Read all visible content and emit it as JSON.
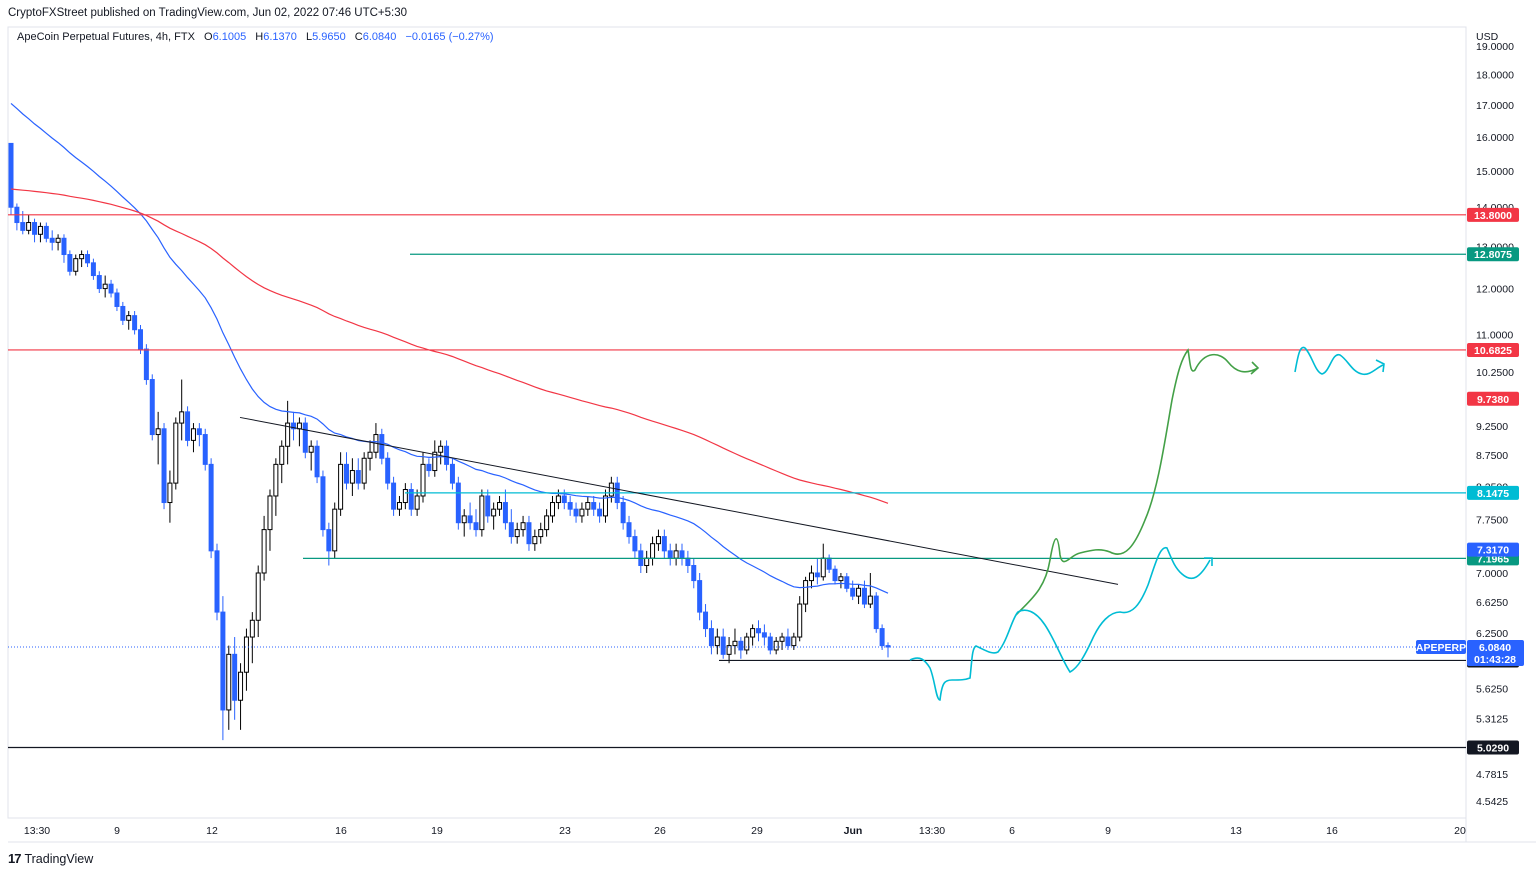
{
  "publisher_line": "CryptoFXStreet published on TradingView.com, Jun 02, 2022 07:46 UTC+5:30",
  "legend": {
    "symbol": "ApeCoin Perpetual Futures, 4h, FTX",
    "open_label": "O",
    "open": "6.1005",
    "high_label": "H",
    "high": "6.1370",
    "low_label": "L",
    "low": "5.9650",
    "close_label": "C",
    "close": "6.0840",
    "change": "−0.0165 (−0.27%)"
  },
  "currency": "USD",
  "brand": {
    "logo": "17",
    "name": "TradingView"
  },
  "colors": {
    "up": "#000000",
    "down": "#2962ff",
    "ema_blue": "#2962ff",
    "ema_red": "#f23645",
    "red_level": "#f23645",
    "green_level": "#089981",
    "cyan_level": "#00bcd4",
    "black_level": "#131722",
    "drawing_green": "#43a047",
    "drawing_cyan": "#00bcd4"
  },
  "chart_data": {
    "type": "candlestick",
    "y_scale": "log",
    "ylim": [
      4.4,
      19.7
    ],
    "y_ticks": [
      "19.0000",
      "18.0000",
      "17.0000",
      "16.0000",
      "15.0000",
      "14.0000",
      "13.0000",
      "12.0000",
      "11.0000",
      "10.2500",
      "9.2500",
      "8.7500",
      "8.2500",
      "7.7500",
      "7.0000",
      "6.6250",
      "6.2500",
      "5.6250",
      "5.3125",
      "4.7815",
      "4.5425"
    ],
    "x_ticks": [
      "13:30",
      "9",
      "12",
      "16",
      "19",
      "23",
      "26",
      "29",
      "Jun",
      "13:30",
      "6",
      "9",
      "13",
      "16",
      "20"
    ],
    "candles": [
      [
        15.8,
        15.8,
        13.8,
        14.0
      ],
      [
        14.0,
        14.1,
        13.4,
        13.6
      ],
      [
        13.6,
        13.9,
        13.3,
        13.4
      ],
      [
        13.4,
        13.8,
        13.3,
        13.6
      ],
      [
        13.6,
        13.7,
        13.1,
        13.3
      ],
      [
        13.3,
        13.6,
        13.1,
        13.5
      ],
      [
        13.5,
        13.6,
        13.1,
        13.2
      ],
      [
        13.2,
        13.4,
        12.9,
        13.1
      ],
      [
        13.1,
        13.3,
        12.9,
        13.2
      ],
      [
        13.2,
        13.3,
        12.6,
        12.8
      ],
      [
        12.8,
        12.9,
        12.3,
        12.4
      ],
      [
        12.4,
        12.8,
        12.3,
        12.7
      ],
      [
        12.7,
        12.9,
        12.5,
        12.8
      ],
      [
        12.8,
        12.9,
        12.5,
        12.6
      ],
      [
        12.6,
        12.7,
        12.2,
        12.3
      ],
      [
        12.3,
        12.4,
        11.9,
        12.0
      ],
      [
        12.0,
        12.3,
        11.8,
        12.1
      ],
      [
        12.1,
        12.2,
        11.8,
        11.9
      ],
      [
        11.9,
        12.0,
        11.5,
        11.6
      ],
      [
        11.6,
        11.7,
        11.2,
        11.3
      ],
      [
        11.3,
        11.5,
        11.1,
        11.4
      ],
      [
        11.4,
        11.5,
        11.0,
        11.1
      ],
      [
        11.1,
        11.2,
        10.6,
        10.7
      ],
      [
        10.7,
        10.8,
        10.0,
        10.1
      ],
      [
        10.1,
        10.2,
        9.0,
        9.1
      ],
      [
        9.1,
        9.5,
        8.6,
        9.2
      ],
      [
        9.2,
        9.3,
        7.9,
        8.0
      ],
      [
        8.0,
        8.5,
        7.7,
        8.3
      ],
      [
        8.3,
        9.4,
        8.2,
        9.3
      ],
      [
        9.3,
        10.1,
        9.0,
        9.5
      ],
      [
        9.5,
        9.6,
        8.9,
        9.0
      ],
      [
        9.0,
        9.3,
        8.8,
        9.2
      ],
      [
        9.2,
        9.3,
        8.9,
        9.1
      ],
      [
        9.1,
        9.2,
        8.5,
        8.6
      ],
      [
        8.6,
        8.7,
        7.2,
        7.3
      ],
      [
        7.3,
        7.4,
        6.4,
        6.5
      ],
      [
        6.5,
        6.7,
        5.1,
        5.4
      ],
      [
        5.4,
        6.1,
        5.2,
        6.0
      ],
      [
        6.0,
        6.2,
        5.3,
        5.5
      ],
      [
        5.5,
        5.9,
        5.2,
        5.8
      ],
      [
        5.8,
        6.3,
        5.6,
        6.2
      ],
      [
        6.2,
        6.5,
        5.9,
        6.4
      ],
      [
        6.4,
        7.1,
        6.2,
        7.0
      ],
      [
        7.0,
        7.8,
        6.9,
        7.6
      ],
      [
        7.6,
        8.2,
        7.3,
        8.1
      ],
      [
        8.1,
        8.7,
        7.8,
        8.6
      ],
      [
        8.6,
        9.0,
        8.3,
        8.9
      ],
      [
        8.9,
        9.7,
        8.6,
        9.3
      ],
      [
        9.3,
        9.5,
        9.0,
        9.2
      ],
      [
        9.2,
        9.4,
        8.9,
        9.3
      ],
      [
        9.3,
        9.4,
        8.7,
        8.8
      ],
      [
        8.8,
        9.0,
        8.5,
        8.9
      ],
      [
        8.9,
        9.0,
        8.3,
        8.4
      ],
      [
        8.4,
        8.5,
        7.5,
        7.6
      ],
      [
        7.6,
        7.7,
        7.1,
        7.3
      ],
      [
        7.3,
        8.0,
        7.2,
        7.9
      ],
      [
        7.9,
        8.8,
        7.8,
        8.6
      ],
      [
        8.6,
        8.8,
        8.2,
        8.3
      ],
      [
        8.3,
        8.7,
        8.1,
        8.5
      ],
      [
        8.5,
        8.7,
        8.2,
        8.3
      ],
      [
        8.3,
        8.8,
        8.2,
        8.7
      ],
      [
        8.7,
        9.0,
        8.5,
        8.8
      ],
      [
        8.8,
        9.3,
        8.7,
        9.1
      ],
      [
        9.1,
        9.2,
        8.6,
        8.7
      ],
      [
        8.7,
        8.8,
        8.2,
        8.3
      ],
      [
        8.3,
        8.4,
        7.8,
        7.9
      ],
      [
        7.9,
        8.1,
        7.8,
        8.0
      ],
      [
        8.0,
        8.3,
        7.9,
        8.2
      ],
      [
        8.2,
        8.3,
        7.8,
        7.9
      ],
      [
        7.9,
        8.2,
        7.8,
        8.1
      ],
      [
        8.1,
        8.8,
        8.0,
        8.6
      ],
      [
        8.6,
        8.7,
        8.4,
        8.5
      ],
      [
        8.5,
        9.0,
        8.4,
        8.8
      ],
      [
        8.8,
        9.0,
        8.6,
        8.9
      ],
      [
        8.9,
        9.0,
        8.5,
        8.6
      ],
      [
        8.6,
        8.7,
        8.2,
        8.3
      ],
      [
        8.3,
        8.4,
        7.6,
        7.7
      ],
      [
        7.7,
        7.9,
        7.5,
        7.8
      ],
      [
        7.8,
        8.0,
        7.6,
        7.7
      ],
      [
        7.7,
        7.9,
        7.5,
        7.6
      ],
      [
        7.6,
        8.2,
        7.5,
        8.1
      ],
      [
        8.1,
        8.2,
        7.7,
        7.8
      ],
      [
        7.8,
        8.0,
        7.6,
        7.9
      ],
      [
        7.9,
        8.1,
        7.8,
        8.0
      ],
      [
        8.0,
        8.2,
        7.6,
        7.7
      ],
      [
        7.7,
        7.9,
        7.4,
        7.5
      ],
      [
        7.5,
        7.7,
        7.4,
        7.6
      ],
      [
        7.6,
        7.8,
        7.5,
        7.7
      ],
      [
        7.7,
        7.8,
        7.3,
        7.4
      ],
      [
        7.4,
        7.6,
        7.3,
        7.5
      ],
      [
        7.5,
        7.7,
        7.4,
        7.6
      ],
      [
        7.6,
        7.9,
        7.5,
        7.8
      ],
      [
        7.8,
        8.1,
        7.7,
        8.0
      ],
      [
        8.0,
        8.2,
        7.9,
        8.1
      ],
      [
        8.1,
        8.2,
        7.9,
        8.0
      ],
      [
        8.0,
        8.1,
        7.8,
        7.9
      ],
      [
        7.9,
        8.0,
        7.7,
        7.8
      ],
      [
        7.8,
        8.0,
        7.7,
        7.9
      ],
      [
        7.9,
        8.1,
        7.8,
        8.0
      ],
      [
        8.0,
        8.1,
        7.8,
        7.9
      ],
      [
        7.9,
        8.0,
        7.7,
        7.8
      ],
      [
        7.8,
        8.2,
        7.7,
        8.1
      ],
      [
        8.1,
        8.4,
        8.0,
        8.3
      ],
      [
        8.3,
        8.4,
        7.9,
        8.0
      ],
      [
        8.0,
        8.1,
        7.6,
        7.7
      ],
      [
        7.7,
        7.8,
        7.4,
        7.5
      ],
      [
        7.5,
        7.6,
        7.2,
        7.3
      ],
      [
        7.3,
        7.4,
        7.0,
        7.1
      ],
      [
        7.1,
        7.3,
        7.0,
        7.2
      ],
      [
        7.2,
        7.5,
        7.1,
        7.4
      ],
      [
        7.4,
        7.6,
        7.3,
        7.5
      ],
      [
        7.5,
        7.6,
        7.2,
        7.3
      ],
      [
        7.3,
        7.4,
        7.1,
        7.2
      ],
      [
        7.2,
        7.4,
        7.1,
        7.3
      ],
      [
        7.3,
        7.4,
        7.1,
        7.2
      ],
      [
        7.2,
        7.3,
        7.0,
        7.1
      ],
      [
        7.1,
        7.2,
        6.8,
        6.9
      ],
      [
        6.9,
        7.0,
        6.4,
        6.5
      ],
      [
        6.5,
        6.6,
        6.2,
        6.3
      ],
      [
        6.3,
        6.4,
        6.0,
        6.1
      ],
      [
        6.1,
        6.3,
        6.0,
        6.2
      ],
      [
        6.2,
        6.3,
        5.95,
        6.0
      ],
      [
        6.0,
        6.2,
        5.9,
        6.1
      ],
      [
        6.1,
        6.3,
        6.0,
        6.15
      ],
      [
        6.15,
        6.2,
        5.95,
        6.05
      ],
      [
        6.05,
        6.25,
        6.0,
        6.2
      ],
      [
        6.2,
        6.35,
        6.1,
        6.3
      ],
      [
        6.3,
        6.4,
        6.15,
        6.25
      ],
      [
        6.25,
        6.35,
        6.1,
        6.2
      ],
      [
        6.2,
        6.25,
        6.0,
        6.05
      ],
      [
        6.05,
        6.2,
        6.0,
        6.15
      ],
      [
        6.15,
        6.25,
        6.05,
        6.2
      ],
      [
        6.2,
        6.3,
        6.05,
        6.1
      ],
      [
        6.1,
        6.25,
        6.05,
        6.2
      ],
      [
        6.2,
        6.7,
        6.15,
        6.6
      ],
      [
        6.6,
        6.95,
        6.5,
        6.9
      ],
      [
        6.9,
        7.1,
        6.8,
        7.0
      ],
      [
        7.0,
        7.2,
        6.85,
        6.95
      ],
      [
        6.95,
        7.4,
        6.9,
        7.2
      ],
      [
        7.2,
        7.25,
        7.0,
        7.05
      ],
      [
        7.05,
        7.1,
        6.85,
        6.9
      ],
      [
        6.9,
        7.0,
        6.8,
        6.95
      ],
      [
        6.95,
        7.0,
        6.75,
        6.8
      ],
      [
        6.8,
        6.9,
        6.65,
        6.7
      ],
      [
        6.7,
        6.85,
        6.6,
        6.8
      ],
      [
        6.8,
        6.9,
        6.55,
        6.6
      ],
      [
        6.6,
        7.0,
        6.55,
        6.7
      ],
      [
        6.7,
        6.75,
        6.25,
        6.3
      ],
      [
        6.3,
        6.35,
        6.05,
        6.1
      ],
      [
        6.1,
        6.137,
        5.965,
        6.084
      ]
    ],
    "overlays": [
      {
        "name": "",
        "color": "#2962ff",
        "type": "ema"
      },
      {
        "name": "",
        "color": "#f23645",
        "type": "ema"
      }
    ],
    "levels": [
      {
        "price_label": "13.8000",
        "price": 13.8,
        "color": "#f23645",
        "span": "full",
        "label_bg": "#f23645"
      },
      {
        "price_label": "12.8075",
        "price": 12.8075,
        "color": "#089981",
        "span": "partial",
        "label_bg": "#089981"
      },
      {
        "price_label": "10.6825",
        "price": 10.6825,
        "color": "#f23645",
        "span": "full",
        "label_bg": "#f23645"
      },
      {
        "price_label": "8.1475",
        "price": 8.1475,
        "color": "#00bcd4",
        "span": "partial",
        "label_bg": "#00bcd4"
      },
      {
        "price_label": "7.1965",
        "price": 7.1965,
        "color": "#089981",
        "span": "partial",
        "label_bg": "#089981"
      },
      {
        "price_label": "5.9310",
        "price": 5.931,
        "color": "#131722",
        "span": "partial",
        "label_bg": "#131722"
      },
      {
        "price_label": "5.0290",
        "price": 5.029,
        "color": "#131722",
        "span": "full",
        "label_bg": "#131722"
      }
    ],
    "axis_labels": [
      {
        "price_label": "9.7380",
        "price": 9.738,
        "label_bg": "#f23645"
      },
      {
        "price_label": "7.3170",
        "price": 7.317,
        "label_bg": "#2962ff"
      }
    ],
    "last_price": {
      "symbol": "APEPERP",
      "price_label": "6.0840",
      "price": 6.084,
      "countdown": "01:43:28",
      "label_bg": "#2962ff"
    },
    "trendline": {
      "from_price": 9.4,
      "to_price": 6.85
    }
  }
}
